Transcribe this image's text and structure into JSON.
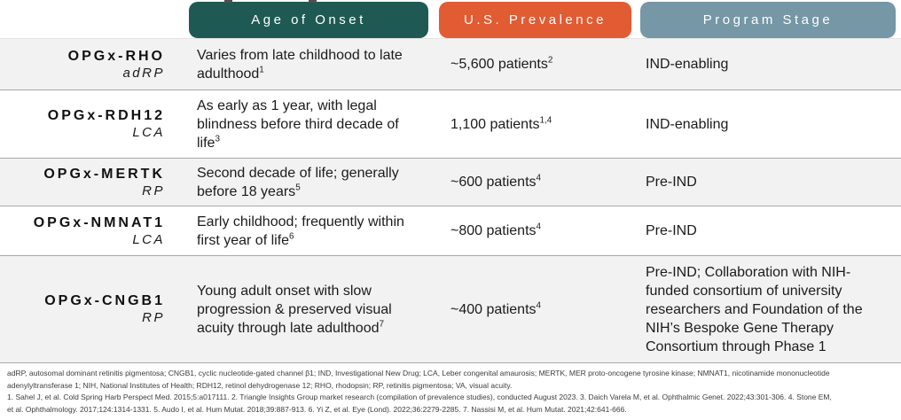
{
  "table": {
    "column_headers": [
      {
        "label": "Age of Onset",
        "color": "#1e5a53"
      },
      {
        "label": "U.S. Prevalence",
        "color": "#e15b33"
      },
      {
        "label": "Program Stage",
        "color": "#7597a6"
      }
    ],
    "rows": [
      {
        "program": "OPGx-RHO",
        "indication": "adRP",
        "age_of_onset": "Varies from late childhood to late adulthood",
        "age_of_onset_ref": "1",
        "prevalence": "~5,600 patients",
        "prevalence_ref": "2",
        "stage": "IND-enabling"
      },
      {
        "program": "OPGx-RDH12",
        "indication": "LCA",
        "age_of_onset": "As early as 1 year, with legal blindness before third decade of life",
        "age_of_onset_ref": "3",
        "prevalence": "1,100 patients",
        "prevalence_ref": "1,4",
        "stage": "IND-enabling"
      },
      {
        "program": "OPGx-MERTK",
        "indication": "RP",
        "age_of_onset": "Second decade of life; generally before 18 years",
        "age_of_onset_ref": "5",
        "prevalence": "~600 patients",
        "prevalence_ref": "4",
        "stage": "Pre-IND"
      },
      {
        "program": "OPGx-NMNAT1",
        "indication": "LCA",
        "age_of_onset": "Early childhood; frequently within first year of life",
        "age_of_onset_ref": "6",
        "prevalence": "~800 patients",
        "prevalence_ref": "4",
        "stage": "Pre-IND"
      },
      {
        "program": "OPGx-CNGB1",
        "indication": "RP",
        "age_of_onset": "Young adult onset with slow progression & preserved visual acuity through late adulthood",
        "age_of_onset_ref": "7",
        "prevalence": "~400 patients",
        "prevalence_ref": "4",
        "stage": "Pre-IND; Collaboration with NIH-funded consortium of university researchers and Foundation of the NIH’s Bespoke Gene Therapy Consortium through Phase 1"
      }
    ]
  },
  "footnotes": {
    "abbreviations": [
      "adRP, autosomal dominant retinitis pigmentosa; CNGB1, cyclic nucleotide-gated channel β1; IND, Investigational New Drug; LCA, Leber congenital amaurosis; MERTK, MER proto-oncogene tyrosine kinase; NMNAT1, nicotinamide mononucleotide",
      "adenylyltransferase 1; NIH, National Institutes of Health; RDH12, retinol dehydrogenase 12; RHO, rhodopsin; RP, retinitis pigmentosa; VA, visual acuity."
    ],
    "references": [
      "1. Sahel J, et al. Cold Spring Harb Perspect Med. 2015;5:a017111. 2. Triangle Insights Group market research (compilation of prevalence studies), conducted August 2023. 3. Daich Varela M, et al. Ophthalmic Genet. 2022;43:301-306. 4. Stone EM,",
      "et al. Ophthalmology. 2017;124:1314-1331. 5. Audo I, et al. Hum Mutat. 2018;39:887-913. 6. Yi Z, et al. Eye (Lond). 2022;36:2279-2285. 7. Nassisi M, et al. Hum Mutat. 2021;42:641-666."
    ]
  }
}
